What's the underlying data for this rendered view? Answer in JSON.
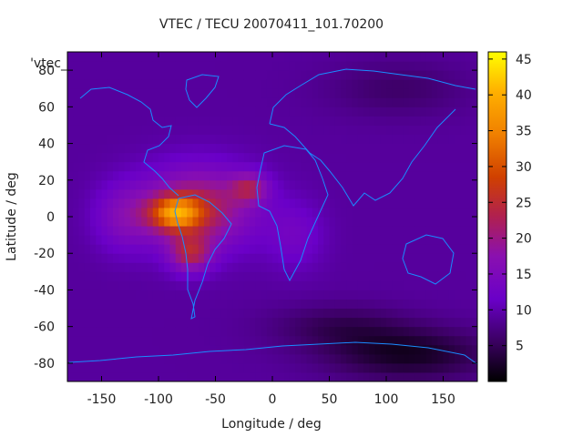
{
  "chart_data": {
    "type": "heatmap",
    "title": "VTEC / TECU 20070411_101.70200",
    "xlabel": "Longitude / deg",
    "ylabel": "Latitude / deg",
    "xlim": [
      -180,
      180
    ],
    "ylim": [
      -90,
      90
    ],
    "x_ticks": [
      -150,
      -100,
      -50,
      0,
      50,
      100,
      150
    ],
    "y_ticks": [
      80,
      60,
      40,
      20,
      0,
      -20,
      -40,
      -60,
      -80
    ],
    "colorbar": {
      "range": [
        0,
        46
      ],
      "ticks": [
        5,
        10,
        15,
        20,
        25,
        30,
        35,
        40,
        45
      ],
      "colormap": "gnuplot-pm3d-black-purple-red-orange-yellow"
    },
    "legend_label": "'vtec_",
    "grid": false,
    "background_tec": 9,
    "features": [
      {
        "name": "equatorial-anomaly-south-america",
        "lon": -80,
        "lat": 0,
        "vtec": 44
      },
      {
        "name": "anomaly-crest-south",
        "lon": -75,
        "lat": -20,
        "vtec": 38
      },
      {
        "name": "anomaly-crest-north",
        "lon": -20,
        "lat": 15,
        "vtec": 32
      },
      {
        "name": "night-minimum-southern-ocean",
        "lon": 120,
        "lat": -75,
        "vtec": 2
      }
    ]
  }
}
